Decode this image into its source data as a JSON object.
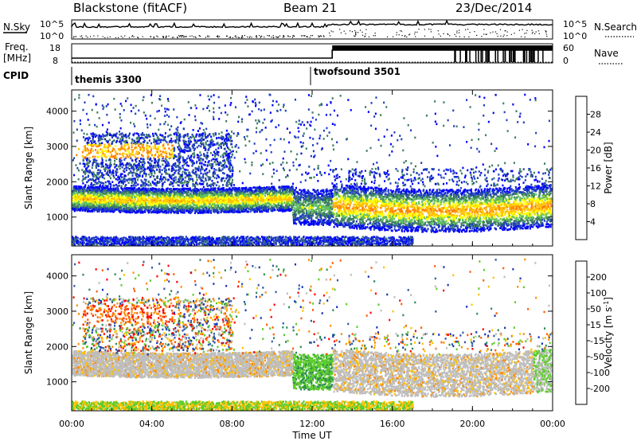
{
  "header": {
    "station": "Blackstone (fitACF)",
    "beam": "Beam 21",
    "date": "23/Dec/2014"
  },
  "top_panels": {
    "nsky_label": "N.Sky",
    "nsky_ticks": [
      "10^5",
      "10^0"
    ],
    "nsearch_label": "N.Search",
    "nsearch_ticks": [
      "10^5",
      "10^0"
    ],
    "freq_label_1": "Freq.",
    "freq_label_2": "[MHz]",
    "freq_ticks": [
      "18",
      "8"
    ],
    "nave_label": "Nave",
    "nave_ticks": [
      "60",
      "0"
    ],
    "cpid_label": "CPID",
    "cpid_segments": [
      {
        "name": "themis 3300",
        "start_hour": 0
      },
      {
        "name": "twofsound 3501",
        "start_hour": 12.0
      }
    ]
  },
  "chart_data": [
    {
      "type": "heatmap",
      "parameter": "Power",
      "ylabel": "Slant Range [km]",
      "yticks": [
        1000,
        2000,
        3000,
        4000
      ],
      "ylim": [
        180,
        4600
      ],
      "xlim": [
        0,
        24
      ],
      "colorbar_label": "Power [dB]",
      "colorbar_ticks": [
        4,
        8,
        12,
        16,
        20,
        24,
        28
      ],
      "colorbar_range": [
        0,
        32
      ],
      "colorbar_colors": [
        "#0000ff",
        "#2040c0",
        "#3f7f60",
        "#5fbf5f",
        "#ffff00",
        "#ffc000",
        "#ff8000",
        "#ff0000"
      ]
    },
    {
      "type": "heatmap",
      "parameter": "Velocity",
      "ylabel": "Slant Range [km]",
      "yticks": [
        1000,
        2000,
        3000,
        4000
      ],
      "ylim": [
        180,
        4600
      ],
      "xlim": [
        0,
        24
      ],
      "colorbar_label": "Velocity [m s^-1]",
      "colorbar_ticks": [
        "200",
        "100",
        "50",
        "15",
        "-15",
        "-50",
        "-100",
        "-200"
      ],
      "colorbar_colors": [
        "#1a33b2",
        "#3058a8",
        "#2e8b57",
        "#5ccc2a",
        "#bebebe",
        "#ffc000",
        "#ff8c00",
        "#ff5a00",
        "#ff0000"
      ]
    }
  ],
  "xaxis": {
    "label": "Time UT",
    "ticks": [
      "00:00",
      "04:00",
      "08:00",
      "12:00",
      "16:00",
      "20:00",
      "00:00"
    ],
    "tick_hours": [
      0,
      4,
      8,
      12,
      16,
      20,
      24
    ]
  }
}
